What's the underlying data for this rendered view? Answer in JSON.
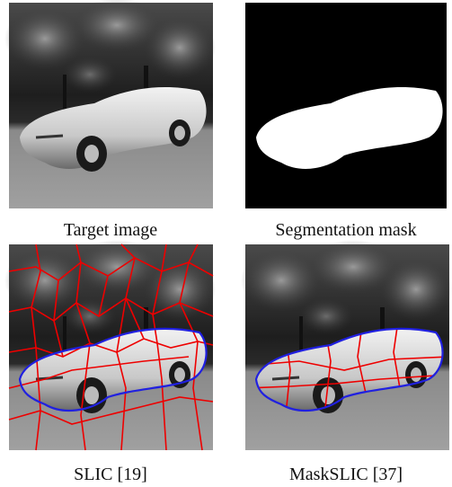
{
  "panels": [
    {
      "caption": "Target image"
    },
    {
      "caption": "Segmentation mask"
    },
    {
      "caption": "SLIC [19]"
    },
    {
      "caption": "MaskSLIC [37]"
    }
  ]
}
